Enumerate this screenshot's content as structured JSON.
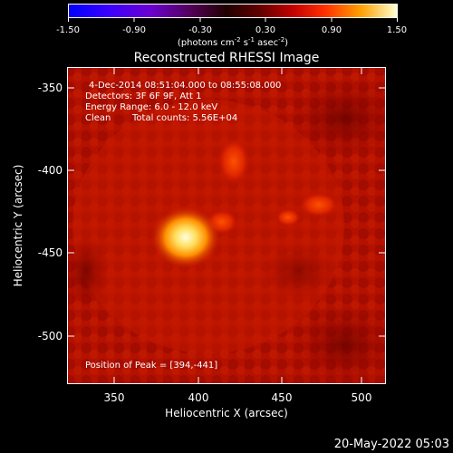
{
  "colorbar": {
    "ticks": [
      "-1.50",
      "-0.90",
      "-0.30",
      "0.30",
      "0.90",
      "1.50"
    ],
    "units": "(photons cm",
    "units_exp1": "-2",
    "units_mid": " s",
    "units_exp2": "-1",
    "units_end": " asec",
    "units_exp3": "-2",
    "units_close": ")",
    "colors": [
      "#0000ff",
      "#4000ff",
      "#8000c0",
      "#600040",
      "#300000",
      "#a00000",
      "#ff3000",
      "#ffa000",
      "#ffffc0"
    ]
  },
  "title": "Reconstructed RHESSI Image",
  "info": {
    "line1": "4-Dec-2014 08:51:04.000 to 08:55:08.000",
    "line2": "Detectors: 3F 6F 9F, Att 1",
    "line3": "Energy Range: 6.0 - 12.0 keV",
    "line4_a": "Clean",
    "line4_b": "Total counts: 5.56E+04"
  },
  "peak": "Position of Peak = [394,-441]",
  "axes": {
    "xlabel": "Heliocentric X (arcsec)",
    "ylabel": "Heliocentric Y (arcsec)",
    "x_ticks": [
      "350",
      "400",
      "450",
      "500"
    ],
    "y_ticks": [
      "-350",
      "-400",
      "-450",
      "-500"
    ]
  },
  "footer_date": "20-May-2022 05:03"
}
